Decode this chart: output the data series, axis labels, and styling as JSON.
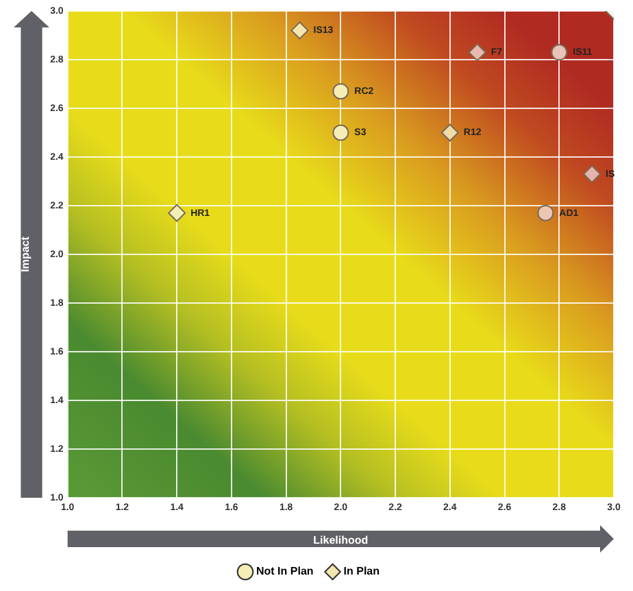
{
  "chart_data": {
    "type": "scatter",
    "xlabel": "Likelihood",
    "ylabel": "Impact",
    "xlim": [
      1.0,
      3.0
    ],
    "ylim": [
      1.0,
      3.0
    ],
    "xticks": [
      {
        "value": 1.0,
        "label": "1.0"
      },
      {
        "value": 1.2,
        "label": "1.2"
      },
      {
        "value": 1.4,
        "label": "1.4"
      },
      {
        "value": 1.6,
        "label": "1.6"
      },
      {
        "value": 1.8,
        "label": "1.8"
      },
      {
        "value": 2.0,
        "label": "2.0"
      },
      {
        "value": 2.2,
        "label": "2.2"
      },
      {
        "value": 2.4,
        "label": "2.4"
      },
      {
        "value": 2.6,
        "label": "2.6"
      },
      {
        "value": 2.8,
        "label": "2.8"
      },
      {
        "value": 3.0,
        "label": "3.0"
      }
    ],
    "yticks": [
      {
        "value": 1.0,
        "label": "1.0"
      },
      {
        "value": 1.2,
        "label": "1.2"
      },
      {
        "value": 1.4,
        "label": "1.4"
      },
      {
        "value": 1.6,
        "label": "1.6"
      },
      {
        "value": 1.8,
        "label": "1.8"
      },
      {
        "value": 2.0,
        "label": "2.0"
      },
      {
        "value": 2.2,
        "label": "2.2"
      },
      {
        "value": 2.4,
        "label": "2.4"
      },
      {
        "value": 2.6,
        "label": "2.6"
      },
      {
        "value": 2.8,
        "label": "2.8"
      },
      {
        "value": 3.0,
        "label": "3.0"
      }
    ],
    "grid": true,
    "legend": "bottom",
    "series": [
      {
        "name": "Not In Plan",
        "marker": "circle",
        "x": [
          2.0,
          2.0,
          2.8,
          2.75
        ],
        "values": [
          2.67,
          2.5,
          2.83,
          2.17
        ],
        "colors": [
          "#f4eeb6",
          "#f4eeb6",
          "#eac3b6",
          "#ecc6b4"
        ]
      },
      {
        "name": "In Plan",
        "marker": "diamond",
        "x": [
          1.85,
          2.5,
          2.4,
          2.92,
          1.4,
          3.0
        ],
        "values": [
          2.92,
          2.83,
          2.5,
          2.33,
          2.17,
          3.0
        ],
        "colors": [
          "#f2e6ae",
          "#e8b9ae",
          "#eedba6",
          "#e6b3ae",
          "#f4eeb6",
          "#f4f4f4"
        ]
      }
    ],
    "annotations": [
      {
        "text": "RC2",
        "x": 2.0,
        "y": 2.67
      },
      {
        "text": "S3",
        "x": 2.0,
        "y": 2.5
      },
      {
        "text": "IS11",
        "x": 2.8,
        "y": 2.83
      },
      {
        "text": "AD1",
        "x": 2.75,
        "y": 2.17
      },
      {
        "text": "IS13",
        "x": 1.85,
        "y": 2.92
      },
      {
        "text": "F7",
        "x": 2.5,
        "y": 2.83
      },
      {
        "text": "R12",
        "x": 2.4,
        "y": 2.5
      },
      {
        "text": "IS",
        "x": 2.92,
        "y": 2.33
      },
      {
        "text": "HR1",
        "x": 1.4,
        "y": 2.17
      }
    ]
  }
}
